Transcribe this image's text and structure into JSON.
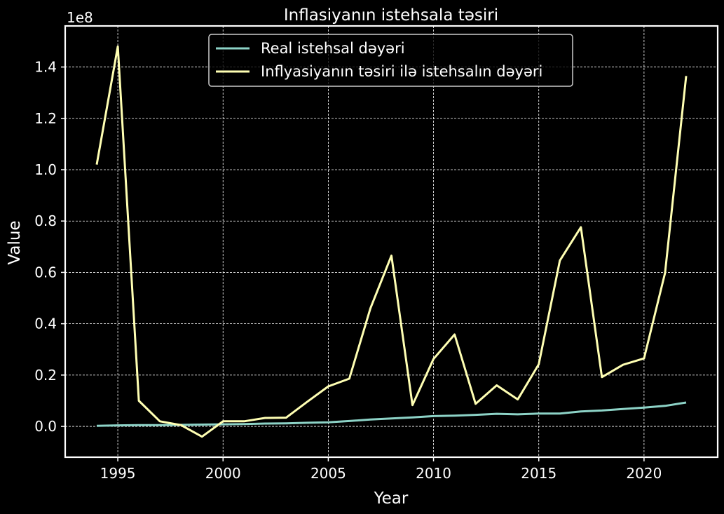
{
  "chart_data": {
    "type": "line",
    "title": "Inflasiyanın istehsala təsiri",
    "xlabel": "Year",
    "ylabel": "Value",
    "y_offset_label": "1e8",
    "xlim": [
      1992.5,
      2023.5
    ],
    "ylim": [
      -0.12,
      1.56
    ],
    "x_ticks": [
      1995,
      2000,
      2005,
      2010,
      2015,
      2020
    ],
    "y_ticks": [
      0.0,
      0.2,
      0.4,
      0.6,
      0.8,
      1.0,
      1.2,
      1.4
    ],
    "y_tick_labels": [
      "0.0",
      "0.2",
      "0.4",
      "0.6",
      "0.8",
      "1.0",
      "1.2",
      "1.4"
    ],
    "grid": true,
    "legend_position": "upper-center",
    "x": [
      1994,
      1995,
      1996,
      1997,
      1998,
      1999,
      2000,
      2001,
      2002,
      2003,
      2004,
      2005,
      2006,
      2007,
      2008,
      2009,
      2010,
      2011,
      2012,
      2013,
      2014,
      2015,
      2016,
      2017,
      2018,
      2019,
      2020,
      2021,
      2022
    ],
    "series": [
      {
        "name": "Real istehsal dəyəri",
        "color": "#8dd3c7",
        "values": [
          0.002,
          0.004,
          0.005,
          0.005,
          0.006,
          0.007,
          0.008,
          0.009,
          0.011,
          0.012,
          0.014,
          0.016,
          0.021,
          0.027,
          0.031,
          0.035,
          0.04,
          0.042,
          0.045,
          0.049,
          0.047,
          0.05,
          0.05,
          0.058,
          0.062,
          0.068,
          0.073,
          0.08,
          0.093
        ]
      },
      {
        "name": "Inflyasiyanın təsiri ilə istehsalın dəyəri",
        "color": "#ffffb3",
        "values": [
          1.02,
          1.48,
          0.1,
          0.02,
          0.005,
          -0.04,
          0.02,
          0.02,
          0.033,
          0.034,
          0.096,
          0.156,
          0.186,
          0.46,
          0.665,
          0.083,
          0.263,
          0.358,
          0.088,
          0.16,
          0.105,
          0.242,
          0.646,
          0.776,
          0.192,
          0.24,
          0.265,
          0.598,
          1.365
        ]
      }
    ]
  }
}
